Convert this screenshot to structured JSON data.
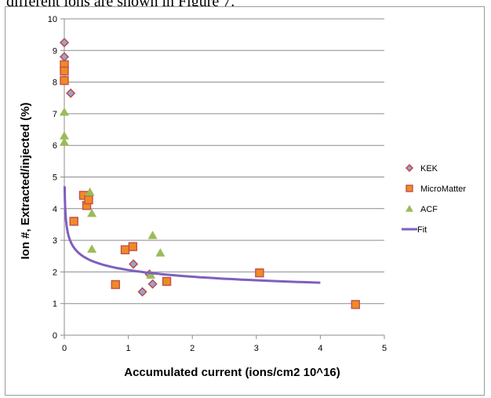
{
  "caption_fragment": "different ions are shown in Figure 7.",
  "chart_data": {
    "type": "scatter",
    "title": "",
    "xlabel": "Accumulated current (ions/cm2  10^16)",
    "ylabel": "Ion #, Extracted/injected (%)",
    "xlim": [
      0,
      5
    ],
    "ylim": [
      0,
      10
    ],
    "x_ticks": [
      "0",
      "1",
      "2",
      "3",
      "4",
      "5"
    ],
    "y_ticks": [
      "0",
      "1",
      "2",
      "3",
      "4",
      "5",
      "6",
      "7",
      "8",
      "9",
      "10"
    ],
    "grid": "horizontal major gridlines",
    "legend_position": "right",
    "series": [
      {
        "name": "KEK",
        "marker": "diamond",
        "color": "#c0504d",
        "fill": "#8fa9d8",
        "points": [
          [
            0.0,
            9.25
          ],
          [
            0.0,
            8.8
          ],
          [
            0.1,
            7.65
          ],
          [
            1.08,
            2.25
          ],
          [
            1.33,
            1.93
          ],
          [
            1.22,
            1.37
          ],
          [
            1.38,
            1.62
          ]
        ]
      },
      {
        "name": "MicroMatter",
        "marker": "square",
        "color": "#c0504d",
        "fill": "#f08a24",
        "points": [
          [
            0.0,
            8.55
          ],
          [
            0.0,
            8.35
          ],
          [
            0.0,
            8.05
          ],
          [
            0.3,
            4.42
          ],
          [
            0.35,
            4.1
          ],
          [
            0.38,
            4.28
          ],
          [
            0.15,
            3.6
          ],
          [
            0.8,
            1.6
          ],
          [
            0.95,
            2.7
          ],
          [
            1.07,
            2.8
          ],
          [
            1.6,
            1.7
          ],
          [
            3.05,
            1.97
          ],
          [
            4.55,
            0.97
          ]
        ]
      },
      {
        "name": "ACF",
        "marker": "triangle",
        "color": "#9bbb59",
        "points": [
          [
            0.0,
            7.05
          ],
          [
            0.0,
            6.3
          ],
          [
            0.0,
            6.1
          ],
          [
            0.4,
            4.52
          ],
          [
            0.43,
            3.85
          ],
          [
            0.43,
            2.72
          ],
          [
            1.38,
            3.15
          ],
          [
            1.5,
            2.6
          ],
          [
            1.35,
            1.9
          ]
        ]
      },
      {
        "name": "Fit",
        "marker": "line",
        "color": "#7f5fbf",
        "curve": "power",
        "coefficients": {
          "a": 2.06,
          "b": -0.156
        },
        "x_range": [
          0.005,
          4.0
        ]
      }
    ]
  }
}
